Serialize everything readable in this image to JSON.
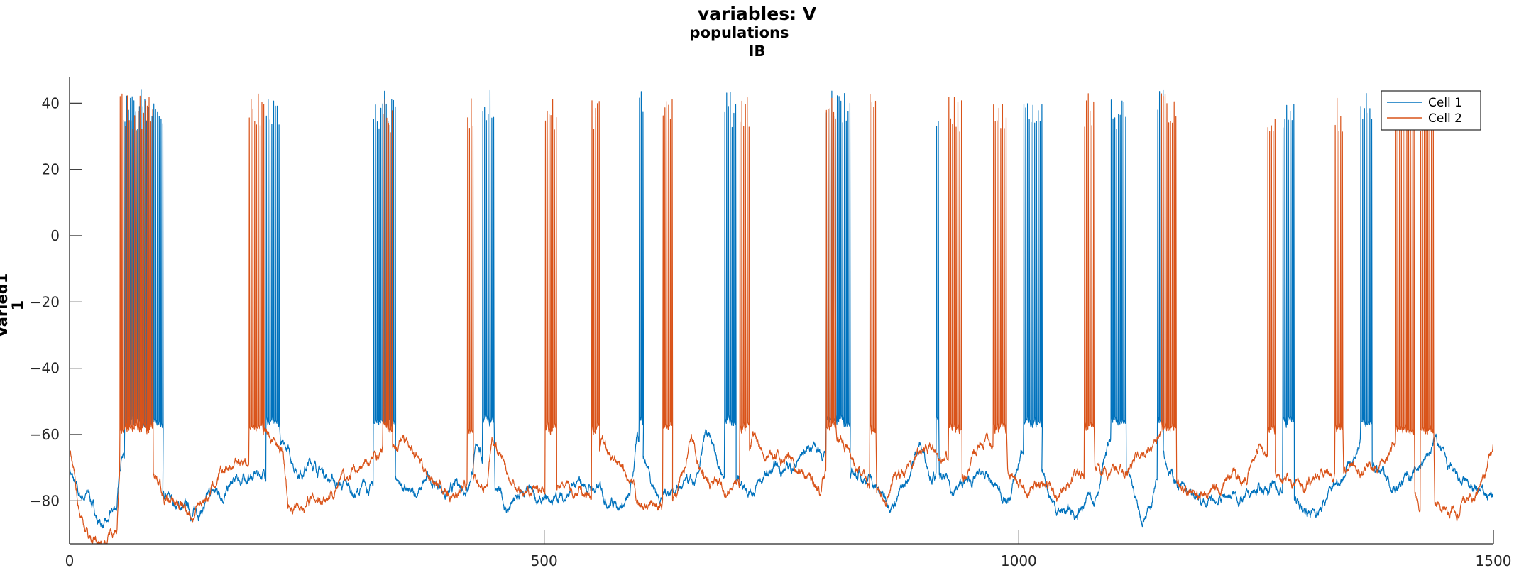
{
  "figure": {
    "title_lines": [
      "variables: V",
      "populations",
      "IB"
    ],
    "ylabel_lines": [
      "Varied1",
      "1"
    ]
  },
  "chart_data": {
    "type": "line",
    "title": "variables: V / populations / IB",
    "xlabel": "",
    "ylabel": "Varied1 1",
    "xlim": [
      0,
      1500
    ],
    "ylim": [
      -93,
      48
    ],
    "xticks": [
      0,
      500,
      1000,
      1500
    ],
    "yticks": [
      -80,
      -60,
      -40,
      -20,
      0,
      20,
      40
    ],
    "grid": false,
    "legend_position": "top-right",
    "series": [
      {
        "name": "Cell 1",
        "color": "#0072BD",
        "baseline": [
          [
            0,
            -70
          ],
          [
            10,
            -80
          ],
          [
            20,
            -78
          ],
          [
            30,
            -86
          ],
          [
            40,
            -88
          ],
          [
            50,
            -82
          ],
          [
            55,
            -65
          ],
          [
            95,
            -72
          ],
          [
            100,
            -80
          ],
          [
            130,
            -84
          ],
          [
            150,
            -79
          ],
          [
            170,
            -76
          ],
          [
            190,
            -73
          ],
          [
            210,
            -71
          ],
          [
            215,
            -56
          ],
          [
            225,
            -65
          ],
          [
            240,
            -70
          ],
          [
            255,
            -68
          ],
          [
            280,
            -74
          ],
          [
            300,
            -78
          ],
          [
            320,
            -76
          ],
          [
            330,
            -62
          ],
          [
            340,
            -71
          ],
          [
            350,
            -75
          ],
          [
            360,
            -80
          ],
          [
            380,
            -74
          ],
          [
            400,
            -78
          ],
          [
            420,
            -74
          ],
          [
            430,
            -62
          ],
          [
            440,
            -72
          ],
          [
            460,
            -83
          ],
          [
            480,
            -79
          ],
          [
            500,
            -82
          ],
          [
            530,
            -77
          ],
          [
            550,
            -76
          ],
          [
            570,
            -79
          ],
          [
            590,
            -80
          ],
          [
            598,
            -62
          ],
          [
            610,
            -70
          ],
          [
            620,
            -78
          ],
          [
            640,
            -75
          ],
          [
            660,
            -77
          ],
          [
            670,
            -62
          ],
          [
            690,
            -72
          ],
          [
            700,
            -73
          ],
          [
            720,
            -75
          ],
          [
            740,
            -72
          ],
          [
            760,
            -70
          ],
          [
            775,
            -65
          ],
          [
            785,
            -62
          ],
          [
            800,
            -68
          ],
          [
            820,
            -73
          ],
          [
            840,
            -72
          ],
          [
            860,
            -80
          ],
          [
            880,
            -76
          ],
          [
            895,
            -62
          ],
          [
            905,
            -69
          ],
          [
            930,
            -77
          ],
          [
            960,
            -73
          ],
          [
            990,
            -80
          ],
          [
            1005,
            -63
          ],
          [
            1020,
            -69
          ],
          [
            1040,
            -82
          ],
          [
            1060,
            -84
          ],
          [
            1080,
            -78
          ],
          [
            1095,
            -62
          ],
          [
            1110,
            -70
          ],
          [
            1120,
            -78
          ],
          [
            1130,
            -86
          ],
          [
            1140,
            -80
          ],
          [
            1150,
            -63
          ],
          [
            1160,
            -71
          ],
          [
            1180,
            -80
          ],
          [
            1200,
            -82
          ],
          [
            1220,
            -78
          ],
          [
            1240,
            -80
          ],
          [
            1260,
            -76
          ],
          [
            1280,
            -77
          ],
          [
            1300,
            -83
          ],
          [
            1320,
            -82
          ],
          [
            1340,
            -72
          ],
          [
            1360,
            -62
          ],
          [
            1380,
            -72
          ],
          [
            1400,
            -75
          ],
          [
            1420,
            -70
          ],
          [
            1440,
            -62
          ],
          [
            1460,
            -75
          ],
          [
            1480,
            -78
          ],
          [
            1490,
            -79
          ]
        ],
        "bursts": [
          [
            58,
            98
          ],
          [
            207,
            222
          ],
          [
            320,
            343
          ],
          [
            435,
            448
          ],
          [
            600,
            604
          ],
          [
            690,
            702
          ],
          [
            797,
            822
          ],
          [
            913,
            916
          ],
          [
            1005,
            1024
          ],
          [
            1097,
            1113
          ],
          [
            1146,
            1152
          ],
          [
            1278,
            1290
          ],
          [
            1360,
            1372
          ]
        ],
        "burst_plateau": -55,
        "spike_peak": 44
      },
      {
        "name": "Cell 2",
        "color": "#D95319",
        "baseline": [
          [
            0,
            -65
          ],
          [
            10,
            -82
          ],
          [
            20,
            -90
          ],
          [
            30,
            -92
          ],
          [
            40,
            -91
          ],
          [
            50,
            -86
          ],
          [
            55,
            -60
          ],
          [
            95,
            -73
          ],
          [
            100,
            -80
          ],
          [
            130,
            -84
          ],
          [
            150,
            -76
          ],
          [
            170,
            -70
          ],
          [
            185,
            -67
          ],
          [
            200,
            -71
          ],
          [
            205,
            -58
          ],
          [
            225,
            -66
          ],
          [
            230,
            -82
          ],
          [
            260,
            -79
          ],
          [
            280,
            -75
          ],
          [
            300,
            -72
          ],
          [
            320,
            -68
          ],
          [
            340,
            -63
          ],
          [
            355,
            -60
          ],
          [
            375,
            -70
          ],
          [
            400,
            -78
          ],
          [
            420,
            -74
          ],
          [
            440,
            -75
          ],
          [
            445,
            -60
          ],
          [
            465,
            -74
          ],
          [
            480,
            -77
          ],
          [
            510,
            -76
          ],
          [
            530,
            -77
          ],
          [
            550,
            -78
          ],
          [
            560,
            -62
          ],
          [
            580,
            -72
          ],
          [
            600,
            -82
          ],
          [
            620,
            -83
          ],
          [
            640,
            -78
          ],
          [
            655,
            -60
          ],
          [
            670,
            -75
          ],
          [
            690,
            -76
          ],
          [
            710,
            -74
          ],
          [
            720,
            -60
          ],
          [
            745,
            -66
          ],
          [
            770,
            -70
          ],
          [
            790,
            -76
          ],
          [
            805,
            -60
          ],
          [
            820,
            -64
          ],
          [
            840,
            -76
          ],
          [
            860,
            -79
          ],
          [
            880,
            -70
          ],
          [
            900,
            -64
          ],
          [
            940,
            -73
          ],
          [
            965,
            -62
          ],
          [
            980,
            -68
          ],
          [
            1000,
            -74
          ],
          [
            1040,
            -78
          ],
          [
            1060,
            -72
          ],
          [
            1070,
            -74
          ],
          [
            1085,
            -70
          ],
          [
            1100,
            -72
          ],
          [
            1130,
            -66
          ],
          [
            1150,
            -62
          ],
          [
            1170,
            -76
          ],
          [
            1190,
            -80
          ],
          [
            1210,
            -76
          ],
          [
            1240,
            -74
          ],
          [
            1255,
            -62
          ],
          [
            1270,
            -71
          ],
          [
            1300,
            -75
          ],
          [
            1320,
            -70
          ],
          [
            1340,
            -72
          ],
          [
            1360,
            -72
          ],
          [
            1380,
            -68
          ],
          [
            1395,
            -62
          ],
          [
            1420,
            -80
          ],
          [
            1450,
            -82
          ],
          [
            1480,
            -80
          ],
          [
            1490,
            -74
          ],
          [
            1500,
            -64
          ]
        ],
        "bursts": [
          [
            53,
            88
          ],
          [
            189,
            205
          ],
          [
            330,
            340
          ],
          [
            419,
            425
          ],
          [
            501,
            513
          ],
          [
            550,
            558
          ],
          [
            625,
            635
          ],
          [
            706,
            716
          ],
          [
            797,
            808
          ],
          [
            843,
            850
          ],
          [
            926,
            940
          ],
          [
            973,
            988
          ],
          [
            1069,
            1080
          ],
          [
            1150,
            1166
          ],
          [
            1262,
            1270
          ],
          [
            1333,
            1342
          ],
          [
            1397,
            1417
          ],
          [
            1423,
            1438
          ]
        ],
        "burst_plateau": -57,
        "spike_peak": 43
      }
    ]
  }
}
